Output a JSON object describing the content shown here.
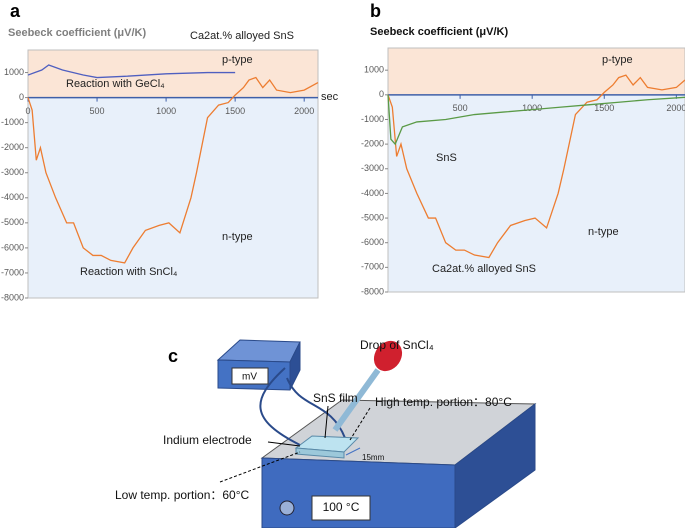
{
  "chart_data": [
    {
      "type": "line",
      "panel": "a",
      "title": "Seebeck coefficient (μV/K)",
      "annotations": [
        "Ca2at.% alloyed SnS",
        "p-type",
        "n-type",
        "sec"
      ],
      "xlim": [
        0,
        2100
      ],
      "xticks": [
        0,
        500,
        1000,
        1500,
        2000
      ],
      "ylim": [
        -8000,
        1900
      ],
      "yticks": [
        -8000,
        -7000,
        -6000,
        -5000,
        -4000,
        -3000,
        -2000,
        -1000,
        0,
        1000
      ],
      "series": [
        {
          "name": "Reaction with SnCl₄",
          "color": "#ed7d31",
          "x": [
            0,
            30,
            60,
            90,
            130,
            200,
            280,
            330,
            400,
            470,
            530,
            600,
            700,
            760,
            850,
            950,
            1020,
            1100,
            1180,
            1220,
            1300,
            1380,
            1450,
            1500,
            1560,
            1600,
            1650,
            1700,
            1750,
            1800,
            1900,
            2000,
            2100
          ],
          "values": [
            0,
            -500,
            -2500,
            -2000,
            -3000,
            -4000,
            -5000,
            -5000,
            -6000,
            -6300,
            -6300,
            -6500,
            -6600,
            -6000,
            -5300,
            -5100,
            -5000,
            -5400,
            -4000,
            -3000,
            -800,
            -300,
            -200,
            100,
            400,
            700,
            800,
            400,
            700,
            300,
            200,
            300,
            600
          ]
        },
        {
          "name": "Reaction with GeCl₄",
          "color": "#4f5fc0",
          "x": [
            0,
            50,
            100,
            150,
            250,
            400,
            500,
            700,
            1000,
            1300,
            1500
          ],
          "values": [
            900,
            1000,
            1100,
            1300,
            1100,
            900,
            800,
            850,
            950,
            1000,
            1000
          ]
        }
      ]
    },
    {
      "type": "line",
      "panel": "b",
      "title": "Seebeck coefficient (μV/K)",
      "annotations": [
        "p-type",
        "n-type"
      ],
      "xlim": [
        0,
        2060
      ],
      "xticks": [
        500,
        1000,
        1500,
        2000
      ],
      "ylim": [
        -8000,
        1900
      ],
      "yticks": [
        -8000,
        -7000,
        -6000,
        -5000,
        -4000,
        -3000,
        -2000,
        -1000,
        0,
        1000
      ],
      "series": [
        {
          "name": "Ca2at.% alloyed SnS",
          "color": "#ed7d31",
          "x": [
            0,
            30,
            60,
            90,
            130,
            200,
            280,
            330,
            400,
            470,
            530,
            600,
            700,
            760,
            850,
            950,
            1020,
            1100,
            1180,
            1220,
            1300,
            1380,
            1450,
            1500,
            1560,
            1600,
            1650,
            1700,
            1750,
            1800,
            1900,
            2000,
            2060
          ],
          "values": [
            0,
            -500,
            -2500,
            -2000,
            -3000,
            -4000,
            -5000,
            -5000,
            -6000,
            -6300,
            -6300,
            -6500,
            -6600,
            -6000,
            -5300,
            -5100,
            -5000,
            -5400,
            -4000,
            -3000,
            -800,
            -300,
            -200,
            100,
            400,
            700,
            800,
            400,
            700,
            300,
            200,
            300,
            600
          ]
        },
        {
          "name": "SnS",
          "color": "#5a9a46",
          "x": [
            0,
            20,
            50,
            100,
            200,
            400,
            600,
            800,
            1000,
            1200,
            1400,
            1600,
            1800,
            2060
          ],
          "values": [
            0,
            -1800,
            -2000,
            -1300,
            -1100,
            -1000,
            -800,
            -700,
            -600,
            -500,
            -400,
            -300,
            -200,
            -100
          ]
        }
      ]
    }
  ],
  "diagram": {
    "panel": "c",
    "drop": "Drop of SnCl₄",
    "meter": "mV",
    "film": "SnS film",
    "high": "High temp. portion：80°C",
    "electrode": "Indium electrode",
    "size": "15mm",
    "low": "Low temp. portion：60°C",
    "plate": "100 °C"
  }
}
